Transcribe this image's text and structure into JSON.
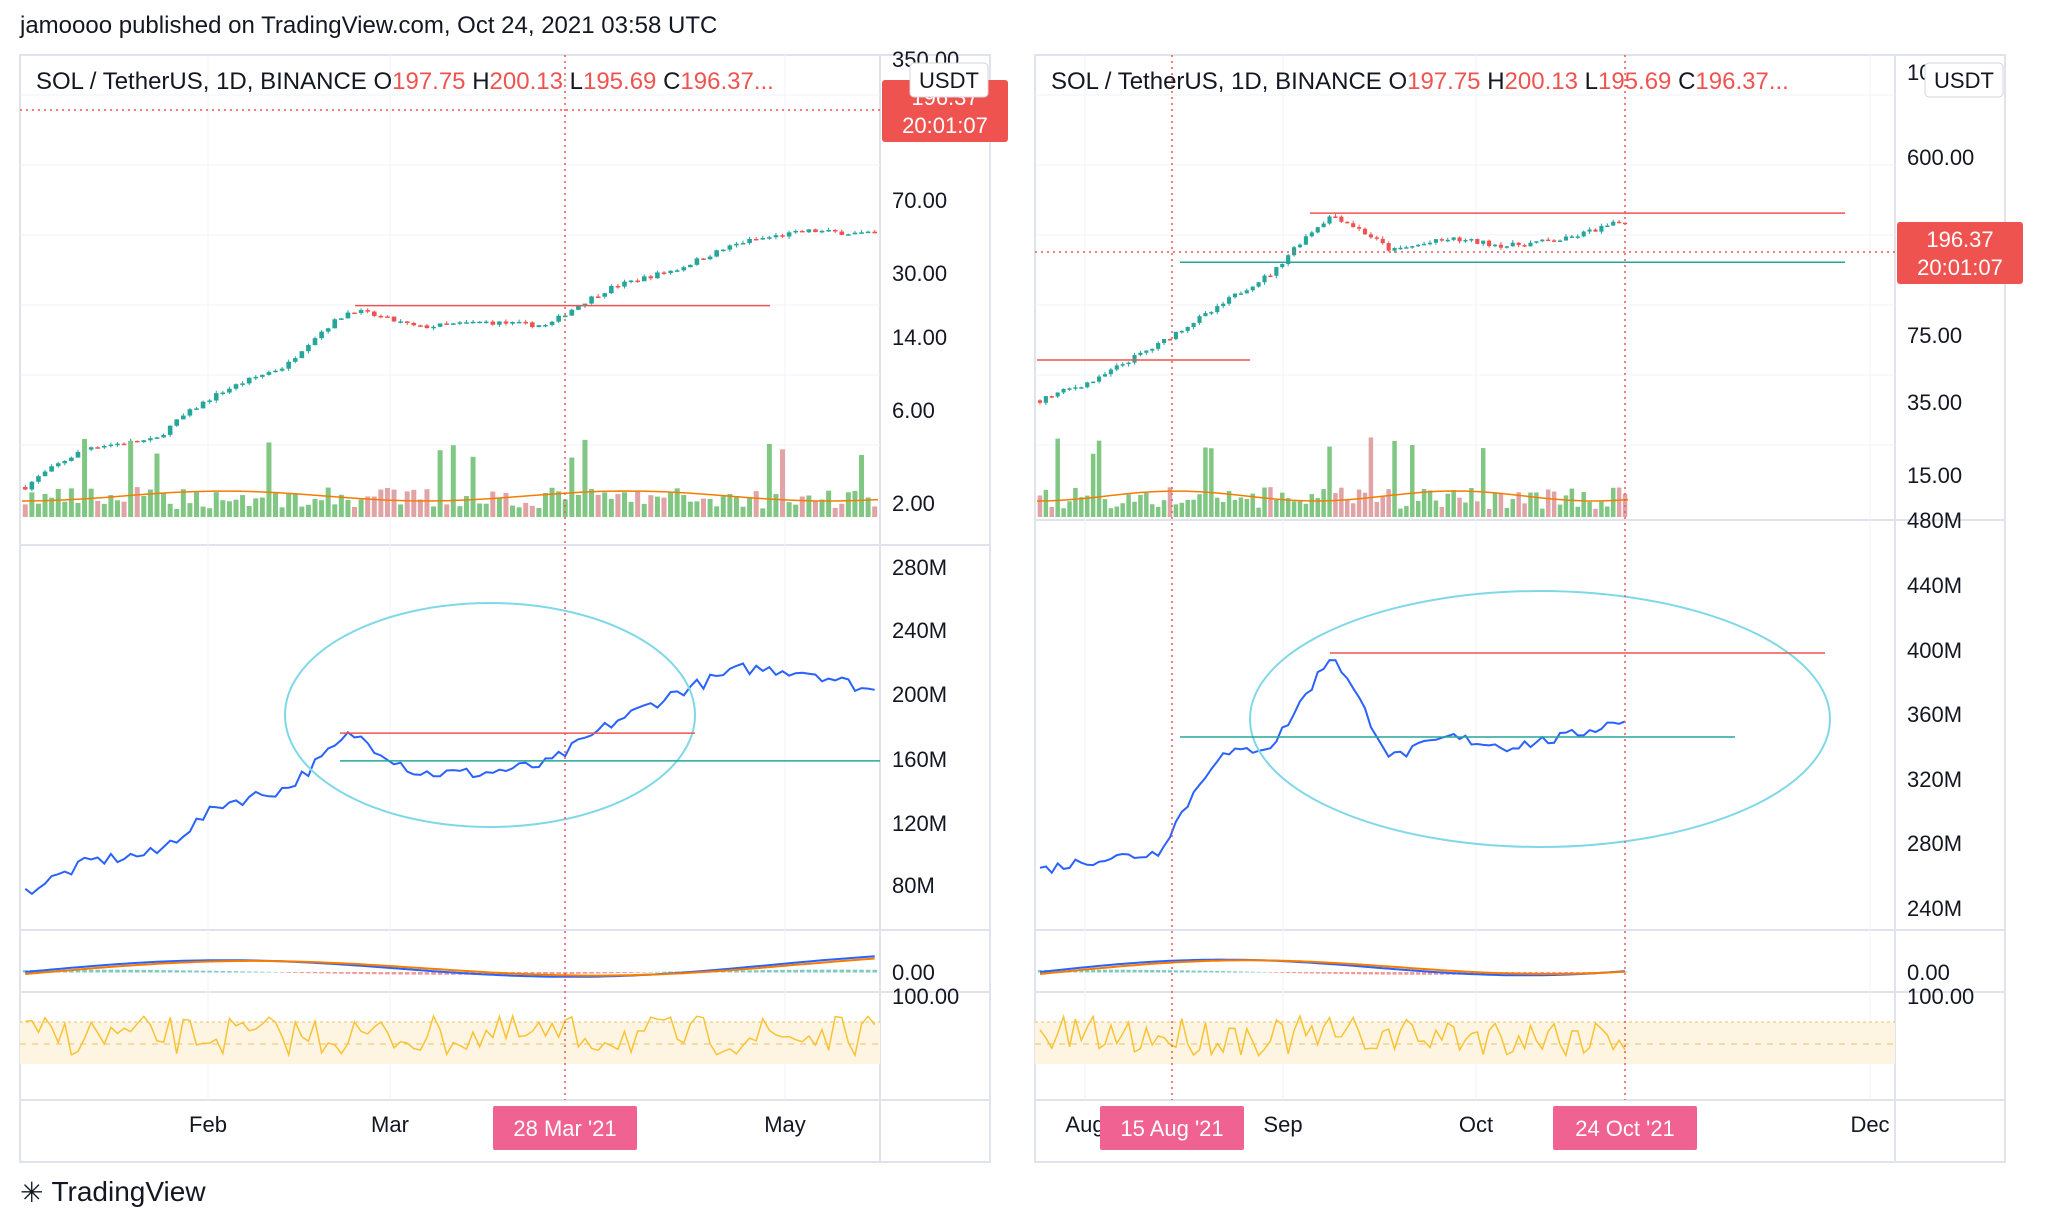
{
  "header": {
    "published": "jamoooo published on TradingView.com, Oct 24, 2021 03:58 UTC"
  },
  "footer": {
    "logo_icon": "tradingview-logo-icon",
    "brand": "TradingView"
  },
  "colors": {
    "up": "#26a69a",
    "down": "#ef5350",
    "blue": "#2962ff",
    "orange": "#f57c00",
    "ellipse": "#7fd8e8",
    "volume_up": "#81c784",
    "volume_down": "#e0a3a6",
    "rsi": "#f9c333",
    "rsi_band": "#fdf4e1",
    "date_badge": "#f06292",
    "price_badge": "#ef5350"
  },
  "chart_data": [
    {
      "type": "candlestick",
      "panel": "left",
      "symbol_line": {
        "pair": "SOL / TetherUS, 1D, BINANCE",
        "o_label": "O",
        "o": "197.75",
        "h_label": "H",
        "h": "200.13",
        "l_label": "L",
        "l": "195.69",
        "c_label": "C",
        "c": "196.37..."
      },
      "currency": "USDT",
      "last_price": "196.37",
      "countdown": "20:01:07",
      "price_scale": "log",
      "price_ticks": [
        "350.00",
        "70.00",
        "30.00",
        "14.00",
        "6.00",
        "2.00"
      ],
      "obv_ticks": [
        "280M",
        "240M",
        "200M",
        "160M",
        "120M",
        "80M"
      ],
      "macd_ticks": [
        "0.00"
      ],
      "rsi_ticks": [
        "100.00"
      ],
      "x_labels": [
        "Feb",
        "Mar",
        "May"
      ],
      "crosshair_date": "28 Mar '21",
      "series": [
        {
          "name": "price_close",
          "x": [
            "Jan 5",
            "Jan 15",
            "Jan 25",
            "Feb 5",
            "Feb 15",
            "Feb 23",
            "Mar 5",
            "Mar 15",
            "Mar 28",
            "Apr 8",
            "Apr 20",
            "Apr 30",
            "May 10",
            "May 18"
          ],
          "values": [
            2.0,
            3.3,
            3.6,
            6.5,
            9.0,
            18.0,
            14.5,
            15.5,
            14.8,
            24,
            30,
            42,
            48,
            46
          ]
        },
        {
          "name": "OBV",
          "x": [
            "Jan 5",
            "Jan 15",
            "Jan 25",
            "Feb 5",
            "Feb 15",
            "Feb 23",
            "Mar 5",
            "Mar 15",
            "Mar 28",
            "Apr 8",
            "Apr 20",
            "Apr 30",
            "May 10",
            "May 18"
          ],
          "values": [
            75,
            95,
            100,
            132,
            142,
            178,
            152,
            152,
            158,
            185,
            205,
            220,
            218,
            205
          ]
        }
      ],
      "levels": {
        "resistance": 19,
        "obv_resistance": 178,
        "obv_support": 160
      }
    },
    {
      "type": "candlestick",
      "panel": "right",
      "symbol_line": {
        "pair": "SOL / TetherUS, 1D, BINANCE",
        "o_label": "O",
        "o": "197.75",
        "h_label": "H",
        "h": "200.13",
        "l_label": "L",
        "l": "195.69",
        "c_label": "C",
        "c": "196.37..."
      },
      "currency": "USDT",
      "last_price": "196.37",
      "countdown": "20:01:07",
      "price_scale": "log",
      "price_ticks": [
        "1000.00",
        "600.00",
        "75.00",
        "35.00",
        "15.00"
      ],
      "obv_ticks": [
        "480M",
        "440M",
        "400M",
        "360M",
        "320M",
        "280M",
        "240M"
      ],
      "macd_ticks": [
        "0.00"
      ],
      "rsi_ticks": [
        "100.00"
      ],
      "x_labels": [
        "Aug",
        "Sep",
        "Oct",
        "Dec"
      ],
      "crosshair_dates": [
        "15 Aug '21",
        "24 Oct '21"
      ],
      "series": [
        {
          "name": "price_close",
          "x": [
            "Jul 20",
            "Aug 1",
            "Aug 15",
            "Aug 25",
            "Sep 1",
            "Sep 9",
            "Sep 20",
            "Oct 1",
            "Oct 10",
            "Oct 20",
            "Oct 24"
          ],
          "values": [
            26,
            33,
            48,
            72,
            110,
            210,
            140,
            160,
            148,
            160,
            196
          ]
        },
        {
          "name": "OBV",
          "x": [
            "Jul 20",
            "Aug 1",
            "Aug 15",
            "Aug 25",
            "Sep 1",
            "Sep 9",
            "Sep 20",
            "Oct 1",
            "Oct 10",
            "Oct 20",
            "Oct 24"
          ],
          "values": [
            250,
            258,
            262,
            330,
            340,
            405,
            330,
            345,
            338,
            345,
            358
          ]
        }
      ],
      "levels": {
        "resistance": 214,
        "support": 123,
        "obv_resistance": 405,
        "obv_support": 345
      }
    }
  ]
}
